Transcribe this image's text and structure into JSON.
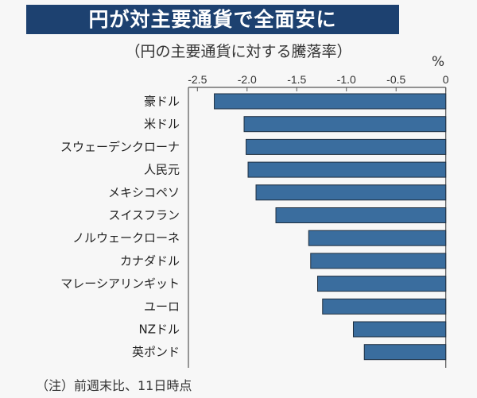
{
  "chart_data": {
    "type": "bar",
    "orientation": "horizontal",
    "title": "円が対主要通貨で全面安に",
    "subtitle": "（円の主要通貨に対する騰落率）",
    "unit": "%",
    "note": "（注）前週末比、11日時点",
    "categories": [
      "豪ドル",
      "米ドル",
      "スウェーデンクローナ",
      "人民元",
      "メキシコペソ",
      "スイスフラン",
      "ノルウェークローネ",
      "カナダドル",
      "マレーシアリンギット",
      "ユーロ",
      "NZドル",
      "英ポンド"
    ],
    "values": [
      -2.33,
      -2.03,
      -2.01,
      -1.99,
      -1.91,
      -1.71,
      -1.38,
      -1.36,
      -1.29,
      -1.24,
      -0.93,
      -0.82
    ],
    "xlim": [
      -2.5,
      0
    ],
    "xticks": [
      -2.5,
      -2.0,
      -1.5,
      -1.0,
      -0.5,
      0
    ],
    "xtick_labels": [
      "-2.5",
      "-2.0",
      "-1.5",
      "-1.0",
      "-0.5",
      "0"
    ],
    "axis_position": "top",
    "grid": false,
    "bar_color": "#3a6d9e",
    "title_bg_color": "#1d4170"
  }
}
